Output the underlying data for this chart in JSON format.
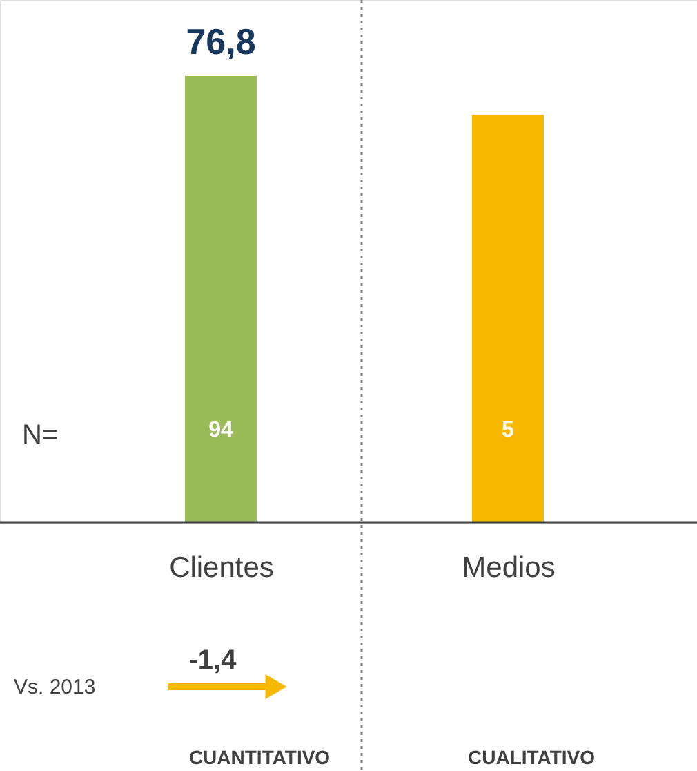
{
  "chart_data": {
    "type": "bar",
    "categories": [
      "Clientes",
      "Medios"
    ],
    "values": [
      76.8,
      70.1
    ],
    "colors": [
      "#9bbb59",
      "#f9b800"
    ],
    "value_labels": [
      "76,8",
      null
    ],
    "tick_labels": "x",
    "annotations": [
      "N=",
      "94",
      "5",
      "Vs. 2013",
      "-1,4",
      "CUANTITATIVO",
      "CUALITATIVO"
    ]
  }
}
